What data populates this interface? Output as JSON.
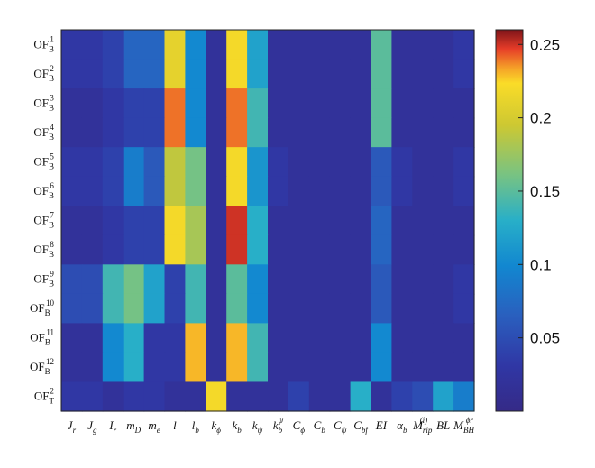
{
  "chart_data": {
    "type": "heatmap",
    "title": "",
    "xlabel": "",
    "ylabel": "",
    "colormap": "parula",
    "color_range": [
      0.0,
      0.26
    ],
    "colorbar_ticks": [
      "0.05",
      "0.1",
      "0.15",
      "0.2",
      "0.25"
    ],
    "rows": [
      {
        "base": "OF",
        "sub": "B",
        "sup": "1"
      },
      {
        "base": "OF",
        "sub": "B",
        "sup": "2"
      },
      {
        "base": "OF",
        "sub": "B",
        "sup": "3"
      },
      {
        "base": "OF",
        "sub": "B",
        "sup": "4"
      },
      {
        "base": "OF",
        "sub": "B",
        "sup": "5"
      },
      {
        "base": "OF",
        "sub": "B",
        "sup": "6"
      },
      {
        "base": "OF",
        "sub": "B",
        "sup": "7"
      },
      {
        "base": "OF",
        "sub": "B",
        "sup": "8"
      },
      {
        "base": "OF",
        "sub": "B",
        "sup": "9"
      },
      {
        "base": "OF",
        "sub": "B",
        "sup": "10"
      },
      {
        "base": "OF",
        "sub": "B",
        "sup": "11"
      },
      {
        "base": "OF",
        "sub": "B",
        "sup": "12"
      },
      {
        "base": "OF",
        "sub": "T",
        "sup": "2"
      }
    ],
    "columns": [
      {
        "base": "J",
        "sub": "r",
        "sup": ""
      },
      {
        "base": "J",
        "sub": "g",
        "sup": ""
      },
      {
        "base": "I",
        "sub": "r",
        "sup": ""
      },
      {
        "base": "m",
        "sub": "D",
        "sup": ""
      },
      {
        "base": "m",
        "sub": "e",
        "sup": ""
      },
      {
        "base": "l",
        "sub": "",
        "sup": ""
      },
      {
        "base": "l",
        "sub": "b",
        "sup": ""
      },
      {
        "base": "k",
        "sub": "ϕ",
        "sup": ""
      },
      {
        "base": "k",
        "sub": "b",
        "sup": ""
      },
      {
        "base": "k",
        "sub": "ψ",
        "sup": ""
      },
      {
        "base": "k",
        "sub": "b",
        "sup": "ψ"
      },
      {
        "base": "C",
        "sub": "ϕ",
        "sup": ""
      },
      {
        "base": "C",
        "sub": "b",
        "sup": ""
      },
      {
        "base": "C",
        "sub": "ψ",
        "sup": ""
      },
      {
        "base": "C",
        "sub": "bf",
        "sup": ""
      },
      {
        "base": "EI",
        "sub": "",
        "sup": ""
      },
      {
        "base": "α",
        "sub": "b",
        "sup": ""
      },
      {
        "base": "M",
        "sub": "rip",
        "sup": "(i)"
      },
      {
        "base": "BL",
        "sub": "",
        "sup": ""
      },
      {
        "base": "M",
        "sub": "BH",
        "sup": "ϕr"
      }
    ],
    "values": [
      [
        0.03,
        0.03,
        0.04,
        0.07,
        0.07,
        0.21,
        0.1,
        0.02,
        0.22,
        0.12,
        0.02,
        0.02,
        0.02,
        0.02,
        0.02,
        0.15,
        0.02,
        0.02,
        0.02,
        0.03
      ],
      [
        0.03,
        0.03,
        0.04,
        0.07,
        0.07,
        0.21,
        0.1,
        0.02,
        0.22,
        0.12,
        0.02,
        0.02,
        0.02,
        0.02,
        0.02,
        0.15,
        0.02,
        0.02,
        0.02,
        0.03
      ],
      [
        0.02,
        0.02,
        0.03,
        0.04,
        0.04,
        0.24,
        0.1,
        0.02,
        0.24,
        0.14,
        0.02,
        0.02,
        0.02,
        0.02,
        0.02,
        0.15,
        0.02,
        0.02,
        0.02,
        0.02
      ],
      [
        0.02,
        0.02,
        0.03,
        0.04,
        0.04,
        0.24,
        0.1,
        0.02,
        0.24,
        0.14,
        0.02,
        0.02,
        0.02,
        0.02,
        0.02,
        0.15,
        0.02,
        0.02,
        0.02,
        0.02
      ],
      [
        0.03,
        0.03,
        0.04,
        0.09,
        0.06,
        0.19,
        0.16,
        0.02,
        0.22,
        0.11,
        0.03,
        0.02,
        0.02,
        0.02,
        0.02,
        0.06,
        0.03,
        0.02,
        0.02,
        0.03
      ],
      [
        0.03,
        0.03,
        0.04,
        0.09,
        0.06,
        0.19,
        0.16,
        0.02,
        0.22,
        0.11,
        0.03,
        0.02,
        0.02,
        0.02,
        0.02,
        0.06,
        0.03,
        0.02,
        0.02,
        0.03
      ],
      [
        0.02,
        0.02,
        0.03,
        0.04,
        0.04,
        0.22,
        0.18,
        0.02,
        0.25,
        0.13,
        0.02,
        0.02,
        0.02,
        0.02,
        0.02,
        0.07,
        0.02,
        0.02,
        0.02,
        0.02
      ],
      [
        0.02,
        0.02,
        0.03,
        0.04,
        0.04,
        0.22,
        0.18,
        0.02,
        0.25,
        0.13,
        0.02,
        0.02,
        0.02,
        0.02,
        0.02,
        0.07,
        0.02,
        0.02,
        0.02,
        0.02
      ],
      [
        0.05,
        0.05,
        0.14,
        0.16,
        0.12,
        0.04,
        0.14,
        0.02,
        0.15,
        0.1,
        0.02,
        0.02,
        0.02,
        0.02,
        0.02,
        0.06,
        0.02,
        0.02,
        0.02,
        0.03
      ],
      [
        0.05,
        0.05,
        0.14,
        0.16,
        0.12,
        0.04,
        0.14,
        0.02,
        0.15,
        0.1,
        0.02,
        0.02,
        0.02,
        0.02,
        0.02,
        0.06,
        0.02,
        0.02,
        0.02,
        0.03
      ],
      [
        0.02,
        0.02,
        0.1,
        0.13,
        0.03,
        0.03,
        0.23,
        0.02,
        0.23,
        0.14,
        0.02,
        0.02,
        0.02,
        0.02,
        0.02,
        0.1,
        0.02,
        0.02,
        0.02,
        0.02
      ],
      [
        0.02,
        0.02,
        0.1,
        0.13,
        0.03,
        0.03,
        0.23,
        0.02,
        0.23,
        0.14,
        0.02,
        0.02,
        0.02,
        0.02,
        0.02,
        0.1,
        0.02,
        0.02,
        0.02,
        0.02
      ],
      [
        0.03,
        0.03,
        0.02,
        0.03,
        0.03,
        0.02,
        0.02,
        0.22,
        0.02,
        0.02,
        0.02,
        0.04,
        0.02,
        0.02,
        0.13,
        0.02,
        0.04,
        0.05,
        0.12,
        0.09
      ]
    ]
  }
}
